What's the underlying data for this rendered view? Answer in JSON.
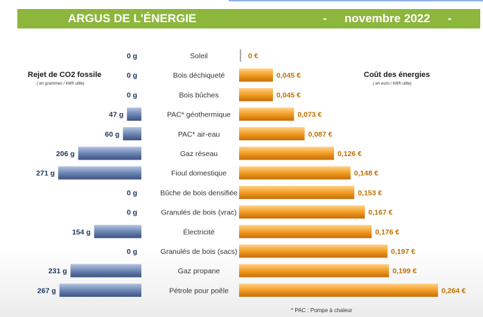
{
  "header": {
    "title": "ARGUS DE L'ÉNERGIE",
    "sep1": "-",
    "date": "novembre 2022",
    "sep2": "-",
    "bg_color": "#8db63c"
  },
  "left_panel": {
    "title": "Rejet de CO2 fossile",
    "subtitle": "( en grammes / kWh utile)"
  },
  "right_panel": {
    "title": "Coût des énergies",
    "subtitle": "( en euro / kWh utile)"
  },
  "footnote": "* PAC :  Pompe à chaleur",
  "chart_data": {
    "type": "bar",
    "orientation": "horizontal-diverging",
    "categories": [
      "Soleil",
      "Bois déchiqueté",
      "Bois bûches",
      "PAC* géothermique",
      "PAC* air-eau",
      "Gaz réseau",
      "Fioul domestique",
      "Bûche de bois densifiée",
      "Granulés de bois (vrac)",
      "Électricité",
      "Granulés de bois (sacs)",
      "Gaz propane",
      "Pétrole pour poêle"
    ],
    "series": [
      {
        "name": "Rejet de CO2 fossile",
        "unit": "g",
        "values": [
          0,
          0,
          0,
          47,
          60,
          206,
          271,
          0,
          0,
          154,
          0,
          231,
          267
        ],
        "labels": [
          "0 g",
          "0 g",
          "0 g",
          "47 g",
          "60 g",
          "206 g",
          "271 g",
          "0 g",
          "0 g",
          "154 g",
          "0 g",
          "231 g",
          "267 g"
        ],
        "color": "#6e87b5"
      },
      {
        "name": "Coût des énergies",
        "unit": "€",
        "values": [
          0,
          0.045,
          0.045,
          0.073,
          0.087,
          0.126,
          0.148,
          0.153,
          0.167,
          0.176,
          0.197,
          0.199,
          0.264
        ],
        "labels": [
          "0 €",
          "0,045 €",
          "0,045 €",
          "0,073 €",
          "0,087 €",
          "0,126 €",
          "0,148 €",
          "0,153 €",
          "0,167 €",
          "0,176 €",
          "0,197 €",
          "0,199 €",
          "0,264 €"
        ],
        "color": "#ef9b22"
      }
    ],
    "label_colors": {
      "co2": "#1f3864",
      "cost": "#c07000",
      "category": "#333333"
    }
  }
}
